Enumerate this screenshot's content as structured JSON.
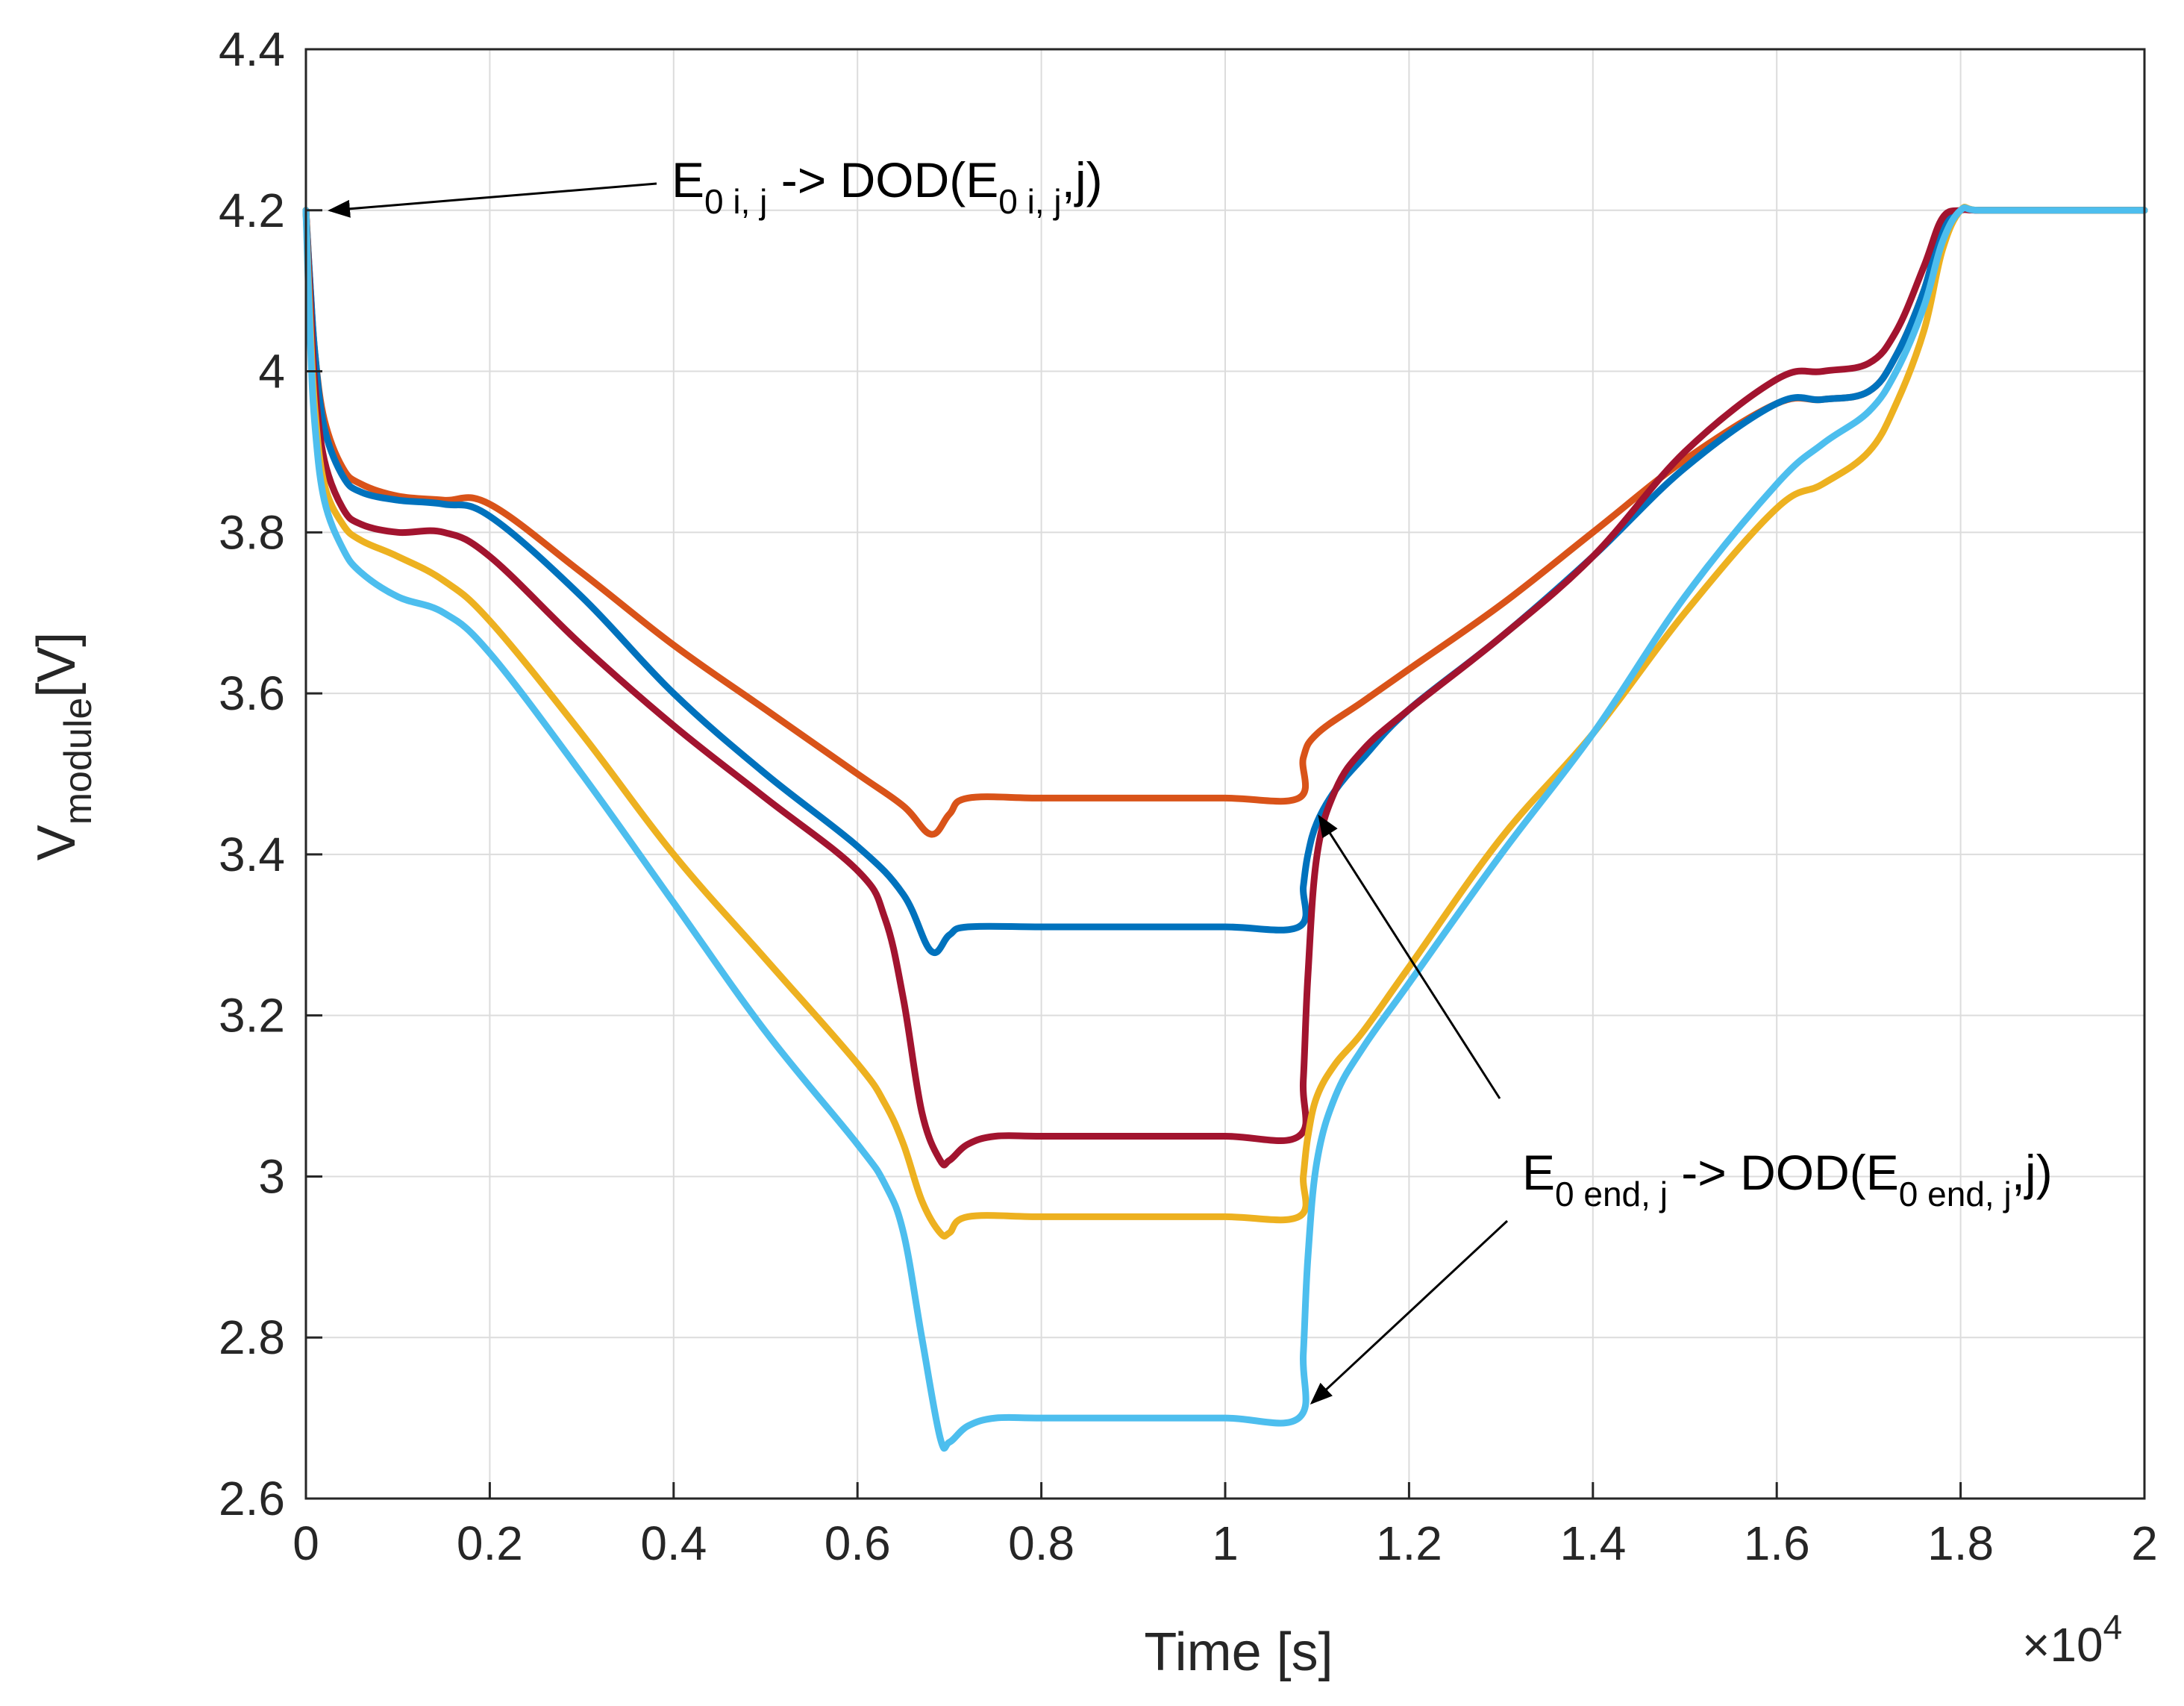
{
  "chart_data": {
    "type": "line",
    "xlabel": "Time [s]",
    "x_multiplier": "×10",
    "x_multiplier_exp": "4",
    "ylabel_main": "V",
    "ylabel_sub": "module",
    "ylabel_unit": "[V]",
    "xlim": [
      0,
      2
    ],
    "ylim": [
      2.6,
      4.4
    ],
    "grid": true,
    "x_ticks": [
      0,
      0.2,
      0.4,
      0.6,
      0.8,
      1,
      1.2,
      1.4,
      1.6,
      1.8,
      2
    ],
    "x_tick_labels": [
      "0",
      "0.2",
      "0.4",
      "0.6",
      "0.8",
      "1",
      "1.2",
      "1.4",
      "1.6",
      "1.8",
      "2"
    ],
    "y_ticks": [
      2.6,
      2.8,
      3.0,
      3.2,
      3.4,
      3.6,
      3.8,
      4.0,
      4.2,
      4.4
    ],
    "y_tick_labels": [
      "2.6",
      "2.8",
      "3",
      "3.2",
      "3.4",
      "3.6",
      "3.8",
      "4",
      "4.2",
      "4.4"
    ],
    "series": [
      {
        "name": "orange",
        "color": "#D95319",
        "x": [
          0,
          0.005,
          0.01,
          0.02,
          0.04,
          0.06,
          0.1,
          0.15,
          0.2,
          0.3,
          0.4,
          0.5,
          0.6,
          0.65,
          0.68,
          0.7,
          0.72,
          0.8,
          0.9,
          1.0,
          1.08,
          1.085,
          1.1,
          1.15,
          1.2,
          1.3,
          1.4,
          1.5,
          1.6,
          1.65,
          1.7,
          1.73,
          1.76,
          1.78,
          1.8,
          1.82,
          1.9,
          2.0
        ],
        "y": [
          4.2,
          4.1,
          4.02,
          3.94,
          3.88,
          3.86,
          3.845,
          3.84,
          3.835,
          3.75,
          3.66,
          3.58,
          3.5,
          3.46,
          3.425,
          3.45,
          3.47,
          3.47,
          3.47,
          3.47,
          3.47,
          3.52,
          3.55,
          3.59,
          3.63,
          3.71,
          3.8,
          3.89,
          3.96,
          3.965,
          3.975,
          4.02,
          4.1,
          4.18,
          4.2,
          4.2,
          4.2,
          4.2
        ]
      },
      {
        "name": "blue",
        "color": "#0072BD",
        "x": [
          0,
          0.005,
          0.01,
          0.02,
          0.04,
          0.06,
          0.1,
          0.15,
          0.2,
          0.3,
          0.4,
          0.5,
          0.6,
          0.65,
          0.68,
          0.7,
          0.72,
          0.8,
          0.9,
          1.0,
          1.08,
          1.085,
          1.09,
          1.1,
          1.12,
          1.15,
          1.2,
          1.3,
          1.4,
          1.5,
          1.6,
          1.65,
          1.7,
          1.73,
          1.76,
          1.78,
          1.8,
          1.82,
          1.9,
          2.0
        ],
        "y": [
          4.2,
          4.1,
          4.02,
          3.93,
          3.87,
          3.85,
          3.84,
          3.835,
          3.82,
          3.72,
          3.6,
          3.5,
          3.41,
          3.35,
          3.28,
          3.3,
          3.31,
          3.31,
          3.31,
          3.31,
          3.31,
          3.36,
          3.4,
          3.44,
          3.48,
          3.52,
          3.58,
          3.67,
          3.77,
          3.88,
          3.96,
          3.965,
          3.975,
          4.02,
          4.1,
          4.18,
          4.2,
          4.2,
          4.2,
          4.2
        ]
      },
      {
        "name": "crimson",
        "color": "#A2142F",
        "x": [
          0,
          0.005,
          0.01,
          0.02,
          0.04,
          0.06,
          0.1,
          0.15,
          0.2,
          0.3,
          0.4,
          0.5,
          0.6,
          0.63,
          0.65,
          0.67,
          0.69,
          0.7,
          0.72,
          0.75,
          0.8,
          0.9,
          1.0,
          1.08,
          1.085,
          1.09,
          1.1,
          1.12,
          1.15,
          1.2,
          1.3,
          1.4,
          1.5,
          1.6,
          1.65,
          1.7,
          1.73,
          1.76,
          1.78,
          1.8,
          1.82,
          1.9,
          2.0
        ],
        "y": [
          4.2,
          4.08,
          3.98,
          3.89,
          3.83,
          3.81,
          3.8,
          3.8,
          3.77,
          3.66,
          3.56,
          3.47,
          3.38,
          3.32,
          3.22,
          3.08,
          3.02,
          3.02,
          3.04,
          3.05,
          3.05,
          3.05,
          3.05,
          3.05,
          3.12,
          3.25,
          3.4,
          3.48,
          3.53,
          3.58,
          3.67,
          3.77,
          3.9,
          3.99,
          4.0,
          4.01,
          4.05,
          4.13,
          4.19,
          4.2,
          4.2,
          4.2,
          4.2
        ]
      },
      {
        "name": "yellow",
        "color": "#EDB120",
        "x": [
          0,
          0.005,
          0.01,
          0.02,
          0.04,
          0.06,
          0.1,
          0.15,
          0.2,
          0.3,
          0.4,
          0.5,
          0.6,
          0.63,
          0.65,
          0.67,
          0.69,
          0.7,
          0.72,
          0.8,
          0.9,
          1.0,
          1.08,
          1.085,
          1.09,
          1.1,
          1.12,
          1.15,
          1.2,
          1.3,
          1.4,
          1.5,
          1.6,
          1.65,
          1.7,
          1.73,
          1.76,
          1.78,
          1.8,
          1.82,
          1.9,
          2.0
        ],
        "y": [
          4.2,
          4.05,
          3.95,
          3.86,
          3.81,
          3.79,
          3.77,
          3.74,
          3.69,
          3.55,
          3.4,
          3.27,
          3.14,
          3.09,
          3.04,
          2.97,
          2.93,
          2.93,
          2.95,
          2.95,
          2.95,
          2.95,
          2.95,
          3.0,
          3.05,
          3.1,
          3.14,
          3.18,
          3.26,
          3.42,
          3.55,
          3.7,
          3.83,
          3.86,
          3.9,
          3.96,
          4.05,
          4.15,
          4.2,
          4.2,
          4.2,
          4.2
        ]
      },
      {
        "name": "light blue",
        "color": "#4DBEEE",
        "x": [
          0,
          0.005,
          0.01,
          0.02,
          0.04,
          0.06,
          0.1,
          0.15,
          0.2,
          0.3,
          0.4,
          0.5,
          0.6,
          0.63,
          0.65,
          0.67,
          0.69,
          0.7,
          0.72,
          0.75,
          0.8,
          0.9,
          1.0,
          1.08,
          1.085,
          1.09,
          1.1,
          1.12,
          1.15,
          1.2,
          1.3,
          1.4,
          1.5,
          1.6,
          1.65,
          1.7,
          1.73,
          1.76,
          1.78,
          1.8,
          1.82,
          1.9,
          2.0
        ],
        "y": [
          4.2,
          4.03,
          3.93,
          3.84,
          3.78,
          3.75,
          3.72,
          3.7,
          3.65,
          3.5,
          3.34,
          3.18,
          3.04,
          2.99,
          2.93,
          2.8,
          2.675,
          2.67,
          2.69,
          2.7,
          2.7,
          2.7,
          2.7,
          2.7,
          2.78,
          2.9,
          3.02,
          3.1,
          3.16,
          3.24,
          3.4,
          3.55,
          3.72,
          3.86,
          3.91,
          3.95,
          4.0,
          4.08,
          4.16,
          4.2,
          4.2,
          4.2,
          4.2
        ]
      }
    ],
    "annotations": [
      {
        "main": "E",
        "sub": "0 i, j",
        "mid": " -> DOD(E",
        "sub2": "0 i, j",
        "tail": ",j)"
      },
      {
        "main": "E",
        "sub": "0 end, j",
        "mid": " -> DOD(E",
        "sub2": "0 end, j",
        "tail": ",j)"
      }
    ]
  }
}
